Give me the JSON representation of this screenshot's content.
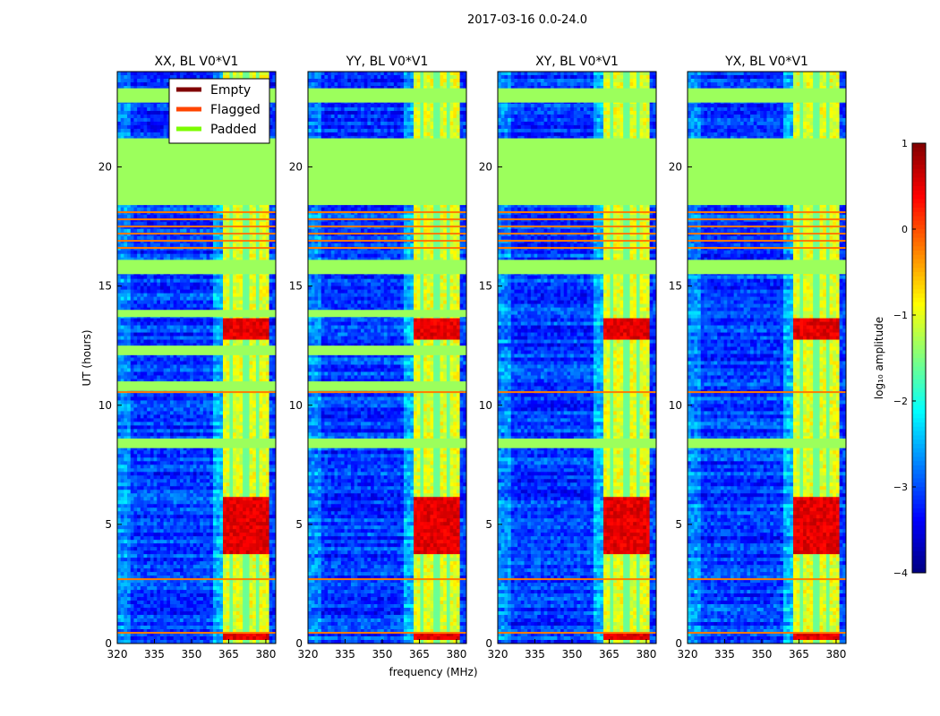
{
  "chart_data": {
    "type": "heatmap",
    "suptitle": "2017-03-16 0.0-24.0",
    "xlabel": "frequency (MHz)",
    "ylabel": "UT (hours)",
    "xlim": [
      320,
      384
    ],
    "ylim": [
      0,
      24
    ],
    "xticks": [
      320,
      335,
      350,
      365,
      380
    ],
    "yticks": [
      0,
      5,
      10,
      15,
      20
    ],
    "colorbar": {
      "label": "log₁₀ amplitude",
      "range": [
        -4,
        1
      ],
      "ticks": [
        1,
        0,
        -1,
        -2,
        -3,
        -4
      ],
      "tick_labels": [
        "1",
        "0",
        "−1",
        "−2",
        "−3",
        "−4"
      ],
      "colormap": "jet"
    },
    "legend": {
      "placement": "upper-left of first panel",
      "entries": [
        {
          "label": "Empty",
          "color": "#800000"
        },
        {
          "label": "Flagged",
          "color": "#ff4500"
        },
        {
          "label": "Padded",
          "color": "#7cfc00"
        }
      ]
    },
    "padded_color": "#9cff5c",
    "flagged_color": "#ff7a00",
    "rfi_band_mhz": [
      362,
      381
    ],
    "rfi_gaps_mhz": [
      366.5,
      372,
      377
    ],
    "rfi_peaks_ut": [
      [
        12.8,
        13.6
      ],
      [
        3.8,
        6.2
      ],
      [
        0.1,
        0.4
      ]
    ],
    "flagged_ut": [
      0.45,
      2.7,
      10.55,
      16.6,
      16.9,
      17.2,
      17.5,
      17.8,
      18.1
    ],
    "panels": [
      {
        "title": "XX, BL V0*V1",
        "padded_ut": [
          [
            22.7,
            23.3
          ],
          [
            18.4,
            21.2
          ],
          [
            15.5,
            16.1
          ],
          [
            13.7,
            14.0
          ],
          [
            12.1,
            12.5
          ],
          [
            10.6,
            11.0
          ],
          [
            8.2,
            8.6
          ]
        ]
      },
      {
        "title": "YY, BL V0*V1",
        "padded_ut": [
          [
            22.7,
            23.3
          ],
          [
            18.4,
            21.2
          ],
          [
            15.5,
            16.1
          ],
          [
            13.7,
            14.0
          ],
          [
            12.1,
            12.5
          ],
          [
            10.6,
            11.0
          ],
          [
            8.2,
            8.6
          ]
        ]
      },
      {
        "title": "XY, BL V0*V1",
        "padded_ut": [
          [
            22.7,
            23.3
          ],
          [
            18.4,
            21.2
          ],
          [
            15.5,
            16.1
          ],
          [
            8.2,
            8.6
          ]
        ]
      },
      {
        "title": "YX, BL V0*V1",
        "padded_ut": [
          [
            22.7,
            23.3
          ],
          [
            18.4,
            21.2
          ],
          [
            15.5,
            16.1
          ],
          [
            8.2,
            8.6
          ]
        ]
      }
    ]
  }
}
